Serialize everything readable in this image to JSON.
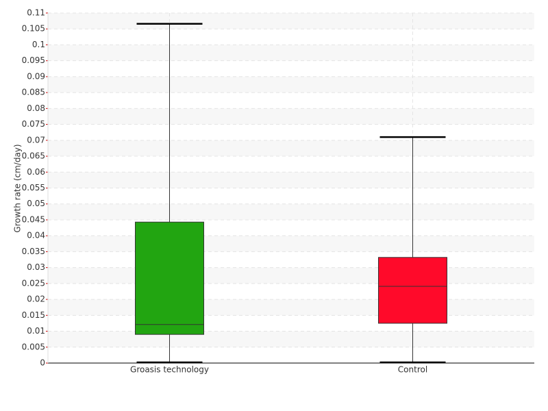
{
  "chart_data": {
    "type": "box",
    "y_label": "Growth rate (cm/day)",
    "categories": [
      "Groasis technology",
      "Control"
    ],
    "min": [
      0,
      0
    ],
    "q1": [
      0.009,
      0.0125
    ],
    "median": [
      0.0121,
      0.0241
    ],
    "q3": [
      0.0443,
      0.0332
    ],
    "max": [
      0.1066,
      0.071
    ],
    "colors": [
      "#22a511",
      "#ff0a2a"
    ],
    "ylim": [
      0,
      0.11
    ],
    "yticks": [
      0,
      0.005,
      0.01,
      0.015,
      0.02,
      0.025,
      0.03,
      0.035,
      0.04,
      0.045,
      0.05,
      0.055,
      0.06,
      0.065,
      0.07,
      0.075,
      0.08,
      0.085,
      0.09,
      0.095,
      0.1,
      0.105,
      0.11
    ],
    "grid": true
  }
}
